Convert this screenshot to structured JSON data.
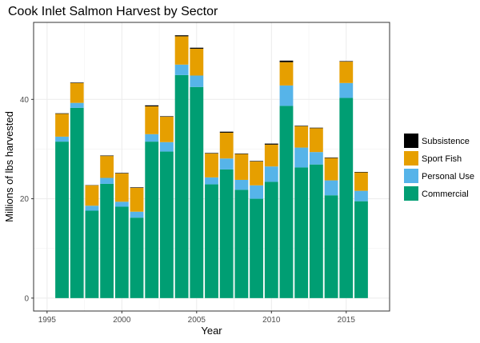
{
  "chart_data": {
    "type": "bar",
    "stacked": true,
    "title": "Cook Inlet Salmon Harvest by Sector",
    "xlabel": "Year",
    "ylabel": "Millions of lbs harvested",
    "xlim": [
      1994.1,
      2017.9
    ],
    "ylim": [
      -2.6,
      55.5
    ],
    "x_ticks": [
      1995,
      2000,
      2005,
      2010,
      2015
    ],
    "y_ticks": [
      0,
      20,
      40
    ],
    "grid": true,
    "legend_position": "right",
    "x": [
      1996,
      1997,
      1998,
      1999,
      2000,
      2001,
      2002,
      2003,
      2004,
      2005,
      2006,
      2007,
      2008,
      2009,
      2010,
      2011,
      2012,
      2013,
      2014,
      2015,
      2016
    ],
    "series": [
      {
        "name": "Commercial",
        "color": "#009E73",
        "values": [
          31.5,
          38.3,
          17.6,
          23.0,
          18.4,
          16.2,
          31.5,
          29.5,
          44.9,
          42.5,
          22.9,
          25.9,
          21.8,
          20.0,
          23.4,
          38.7,
          26.3,
          26.9,
          20.7,
          40.3,
          19.5
        ]
      },
      {
        "name": "Personal Use",
        "color": "#56B4E9",
        "values": [
          1.0,
          1.0,
          1.0,
          1.2,
          1.0,
          1.2,
          1.5,
          1.9,
          2.1,
          2.3,
          1.4,
          2.2,
          2.0,
          2.7,
          3.1,
          4.1,
          4.0,
          2.5,
          3.0,
          3.0,
          2.1
        ]
      },
      {
        "name": "Sport Fish",
        "color": "#E69F00",
        "values": [
          4.6,
          4.0,
          4.1,
          4.4,
          5.7,
          4.8,
          5.6,
          5.1,
          5.7,
          5.4,
          4.8,
          5.2,
          5.2,
          4.8,
          4.4,
          4.7,
          4.3,
          4.8,
          4.5,
          4.3,
          3.7
        ]
      },
      {
        "name": "Subsistence",
        "color": "#000000",
        "values": [
          0.1,
          0.1,
          0.05,
          0.1,
          0.1,
          0.1,
          0.2,
          0.1,
          0.2,
          0.2,
          0.1,
          0.2,
          0.1,
          0.1,
          0.2,
          0.3,
          0.1,
          0.1,
          0.1,
          0.1,
          0.1
        ]
      }
    ],
    "legend_order": [
      "Subsistence",
      "Sport Fish",
      "Personal Use",
      "Commercial"
    ]
  }
}
